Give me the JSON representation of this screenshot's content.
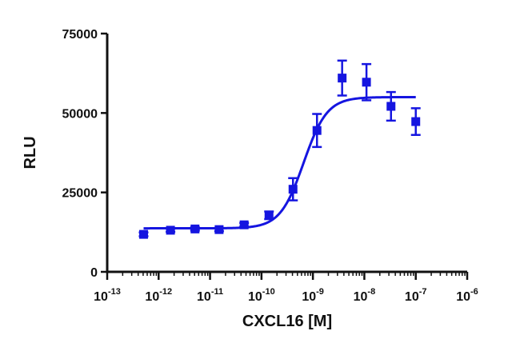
{
  "chart_data": {
    "type": "scatter",
    "title": "",
    "xlabel": "CXCL16 [M]",
    "ylabel": "RLU",
    "x_scale": "log",
    "xlim": [
      1e-13,
      1e-06
    ],
    "ylim": [
      0,
      75000
    ],
    "x_ticks": [
      {
        "value": 1e-13,
        "base": "10",
        "exp": "-13"
      },
      {
        "value": 1e-12,
        "base": "10",
        "exp": "-12"
      },
      {
        "value": 1e-11,
        "base": "10",
        "exp": "-11"
      },
      {
        "value": 1e-10,
        "base": "10",
        "exp": "-10"
      },
      {
        "value": 1e-09,
        "base": "10",
        "exp": "-9"
      },
      {
        "value": 1e-08,
        "base": "10",
        "exp": "-8"
      },
      {
        "value": 1e-07,
        "base": "10",
        "exp": "-7"
      },
      {
        "value": 1e-06,
        "base": "10",
        "exp": "-6"
      }
    ],
    "y_ticks": [
      {
        "value": 0,
        "label": "0"
      },
      {
        "value": 25000,
        "label": "25000"
      },
      {
        "value": 50000,
        "label": "50000"
      },
      {
        "value": 75000,
        "label": "75000"
      }
    ],
    "grid": false,
    "color": "#1515e0",
    "series": [
      {
        "marker": "square",
        "points": [
          {
            "x": 5.1e-13,
            "y": 11800,
            "err": 600
          },
          {
            "x": 1.7e-12,
            "y": 13100,
            "err": 500
          },
          {
            "x": 5.1e-12,
            "y": 13500,
            "err": 500
          },
          {
            "x": 1.5e-11,
            "y": 13300,
            "err": 500
          },
          {
            "x": 4.6e-11,
            "y": 14800,
            "err": 600
          },
          {
            "x": 1.4e-10,
            "y": 17800,
            "err": 1200
          },
          {
            "x": 4.1e-10,
            "y": 26000,
            "err": 3500
          },
          {
            "x": 1.2e-09,
            "y": 44500,
            "err": 5200
          },
          {
            "x": 3.7e-09,
            "y": 61000,
            "err": 5500
          },
          {
            "x": 1.1e-08,
            "y": 59700,
            "err": 5700
          },
          {
            "x": 3.3e-08,
            "y": 52100,
            "err": 4500
          },
          {
            "x": 1e-07,
            "y": 47300,
            "err": 4200
          }
        ]
      }
    ],
    "fit_curve": {
      "model": "four-parameter logistic",
      "bottom": 13700,
      "top": 55000,
      "ec50": 6.6e-10,
      "hill": 1.9,
      "x_range": [
        5.1e-13,
        1e-07
      ]
    }
  }
}
